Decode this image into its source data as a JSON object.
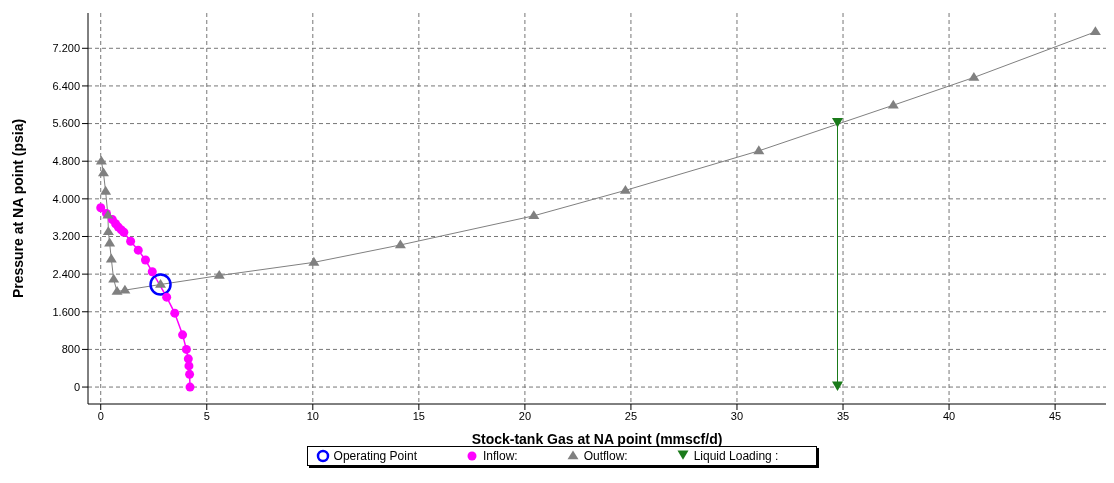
{
  "chart_data": {
    "type": "line",
    "xlabel": "Stock-tank Gas at NA point (mmscf/d)",
    "ylabel": "Pressure at NA point (psia)",
    "xlim": [
      -0.6,
      47.4
    ],
    "xticks": [
      0,
      5,
      10,
      15,
      20,
      25,
      30,
      35,
      40,
      45
    ],
    "ylim": [
      -360,
      7950
    ],
    "yticks": [
      0,
      800,
      {
        "value": 1600,
        "label": "1.600"
      },
      {
        "value": 2400,
        "label": "2.400"
      },
      {
        "value": 3200,
        "label": "3.200"
      },
      {
        "value": 4000,
        "label": "4.000"
      },
      {
        "value": 4800,
        "label": "4.800"
      },
      {
        "value": 5600,
        "label": "5.600"
      },
      {
        "value": 6400,
        "label": "6.400"
      },
      {
        "value": 7200,
        "label": "7.200"
      }
    ],
    "grid": true,
    "legend": "bottom",
    "line_style": "solid",
    "series": [
      {
        "name": "Operating Point",
        "type": "scatter",
        "color": "#0000ff",
        "marker": "circle",
        "x": [
          2.82
        ],
        "values": [
          2180
        ]
      },
      {
        "name": "Inflow:",
        "color": "#ff00ff",
        "marker": "circle",
        "x": [
          0,
          0.27,
          0.55,
          0.7,
          0.83,
          0.97,
          1.09,
          1.41,
          1.77,
          2.11,
          2.43,
          3.11,
          3.49,
          3.86,
          4.04,
          4.13,
          4.16,
          4.19,
          4.21
        ],
        "values": [
          3810,
          3690,
          3560,
          3470,
          3400,
          3340,
          3290,
          3100,
          2910,
          2700,
          2450,
          1910,
          1570,
          1110,
          800,
          600,
          450,
          270,
          0
        ]
      },
      {
        "name": "Outflow:",
        "color": "#808080",
        "marker": "triangle",
        "x": [
          0.03,
          0.13,
          0.23,
          0.34,
          0.36,
          0.42,
          0.5,
          0.61,
          0.77,
          1.14,
          2.82,
          5.59,
          10.05,
          14.13,
          20.42,
          24.74,
          31.03,
          37.37,
          41.17,
          46.9
        ],
        "values": [
          4800,
          4550,
          4160,
          3650,
          3300,
          3060,
          2720,
          2290,
          2030,
          2060,
          2180,
          2370,
          2650,
          3020,
          3640,
          4180,
          5020,
          5990,
          6580,
          7550
        ]
      },
      {
        "name": "Liquid Loading :",
        "color": "#1a7a1a",
        "marker": "triangle",
        "x": [
          34.74,
          34.74
        ],
        "values": [
          5600,
          0
        ]
      }
    ]
  }
}
